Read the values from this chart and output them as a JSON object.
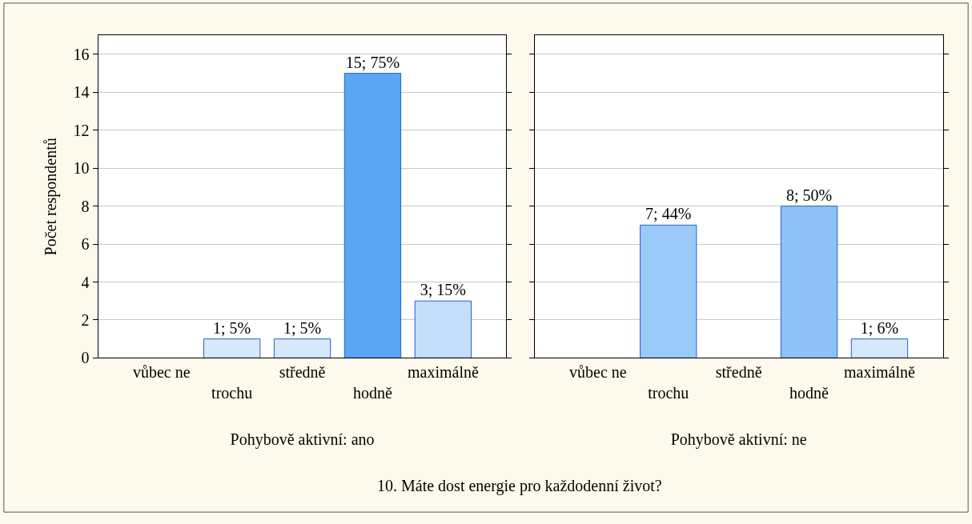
{
  "chart_data": [
    {
      "type": "bar",
      "categories": [
        "vůbec ne",
        "trochu",
        "středně",
        "hodně",
        "maximálně"
      ],
      "values": [
        0,
        1,
        1,
        15,
        3
      ],
      "colors": [
        "#d6e8fc",
        "#d6e8fc",
        "#d6e8fc",
        "#5aa6f5",
        "#c4defb"
      ],
      "value_labels": [
        null,
        "1; 5%",
        "1; 5%",
        "15; 75%",
        "3; 15%"
      ],
      "ylabel": "Počet respondentů",
      "xlabel": "Pohybově aktivní: ano",
      "ylim": [
        0,
        17
      ],
      "yticks": [
        0,
        2,
        4,
        6,
        8,
        10,
        12,
        14,
        16
      ],
      "grid": "y",
      "annotations": [
        "10. Máte dost energie pro každodenní život?"
      ]
    },
    {
      "type": "bar",
      "categories": [
        "vůbec ne",
        "trochu",
        "středně",
        "hodně",
        "maximálně"
      ],
      "values": [
        0,
        7,
        0,
        8,
        1
      ],
      "colors": [
        "#d6e8fc",
        "#9ccaf8",
        "#d6e8fc",
        "#8fc2f7",
        "#d6e8fc"
      ],
      "value_labels": [
        null,
        "7; 44%",
        null,
        "8; 50%",
        "1; 6%"
      ],
      "xlabel": "Pohybově aktivní: ne",
      "ylim": [
        0,
        17
      ],
      "yticks": [
        0,
        2,
        4,
        6,
        8,
        10,
        12,
        14,
        16
      ],
      "grid": "y",
      "tick_labels": "x"
    }
  ]
}
